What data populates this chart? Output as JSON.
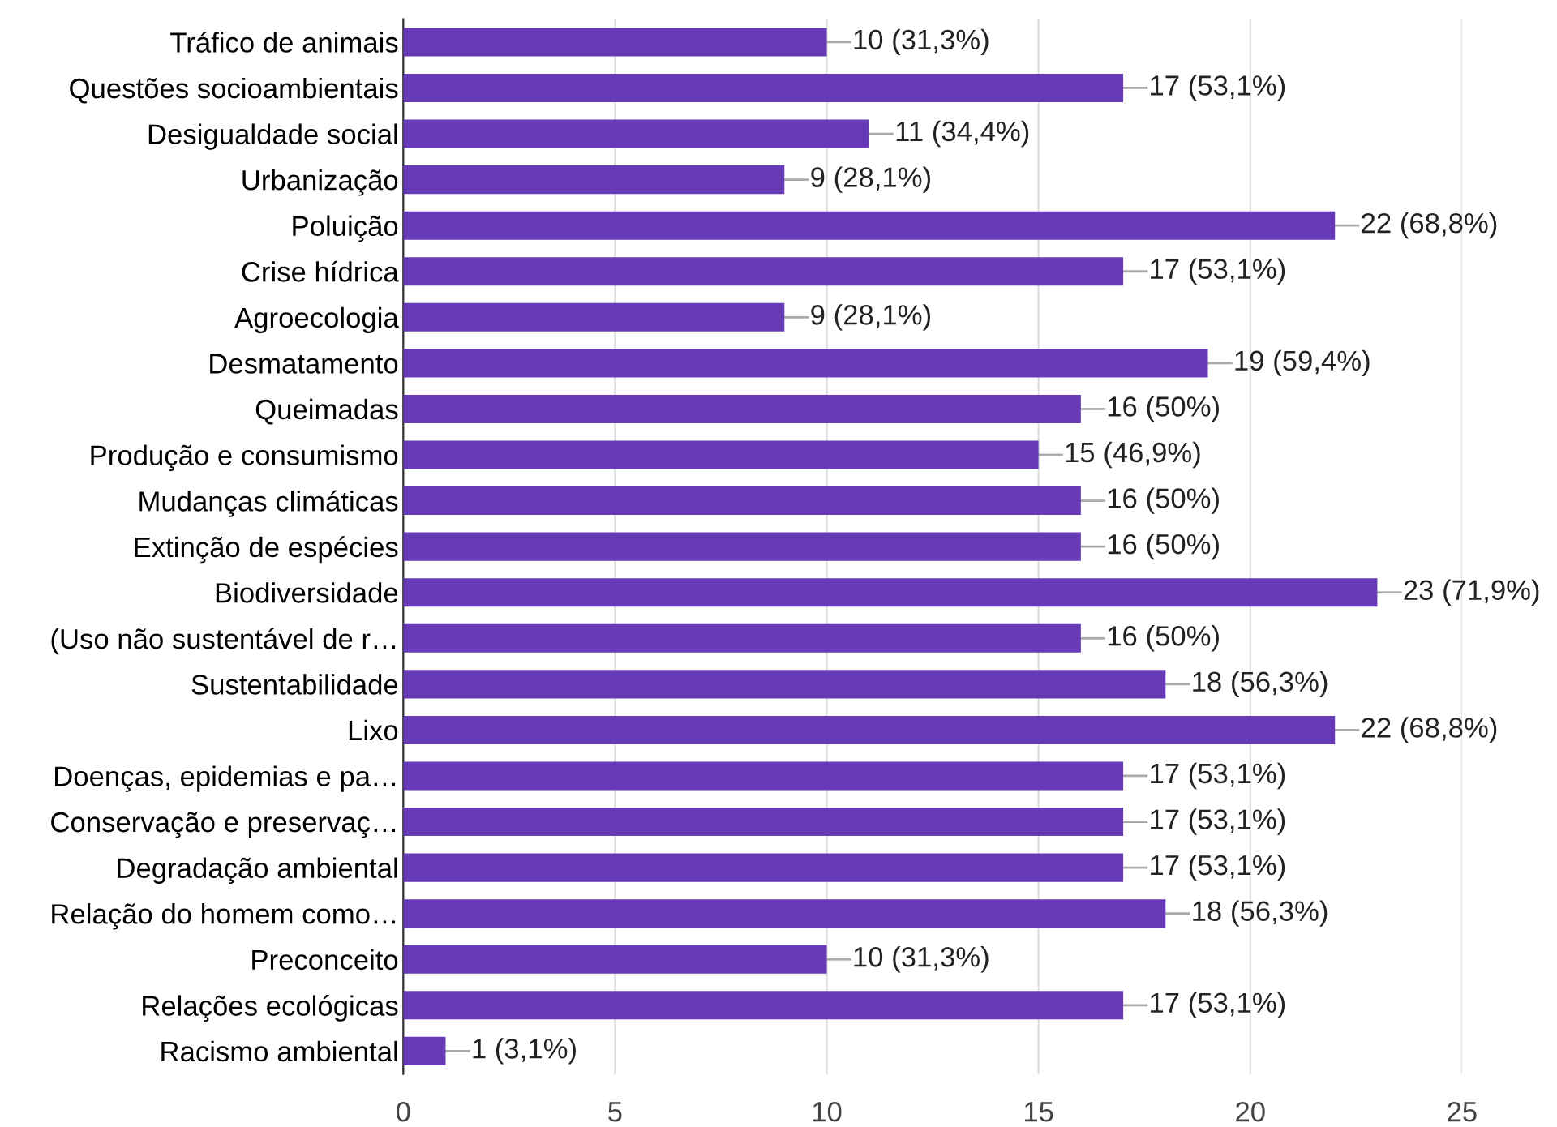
{
  "chart_data": {
    "type": "bar",
    "orientation": "horizontal",
    "categories": [
      "Tráfico de animais",
      "Questões socioambientais",
      "Desigualdade social",
      "Urbanização",
      "Poluição",
      "Crise hídrica",
      "Agroecologia",
      "Desmatamento",
      "Queimadas",
      "Produção e consumismo",
      "Mudanças climáticas",
      "Extinção de espécies",
      "Biodiversidade",
      "(Uso não sustentável de r…",
      "Sustentabilidade",
      "Lixo",
      "Doenças, epidemias e pa…",
      "Conservação e preservaç…",
      "Degradação ambiental",
      "Relação do homem como…",
      "Preconceito",
      "Relações ecológicas",
      "Racismo ambiental"
    ],
    "values": [
      10,
      17,
      11,
      9,
      22,
      17,
      9,
      19,
      16,
      15,
      16,
      16,
      23,
      16,
      18,
      22,
      17,
      17,
      17,
      18,
      10,
      17,
      1
    ],
    "value_labels": [
      "10 (31,3%)",
      "17 (53,1%)",
      "11 (34,4%)",
      "9 (28,1%)",
      "22 (68,8%)",
      "17 (53,1%)",
      "9 (28,1%)",
      "19 (59,4%)",
      "16 (50%)",
      "15 (46,9%)",
      "16 (50%)",
      "16 (50%)",
      "23 (71,9%)",
      "16 (50%)",
      "18 (56,3%)",
      "22 (68,8%)",
      "17 (53,1%)",
      "17 (53,1%)",
      "17 (53,1%)",
      "18 (56,3%)",
      "10 (31,3%)",
      "17 (53,1%)",
      "1 (3,1%)"
    ],
    "color": "#673ab7",
    "xlim": [
      0,
      25
    ],
    "xticks": [
      0,
      5,
      10,
      15,
      20,
      25
    ],
    "grid": "x"
  }
}
